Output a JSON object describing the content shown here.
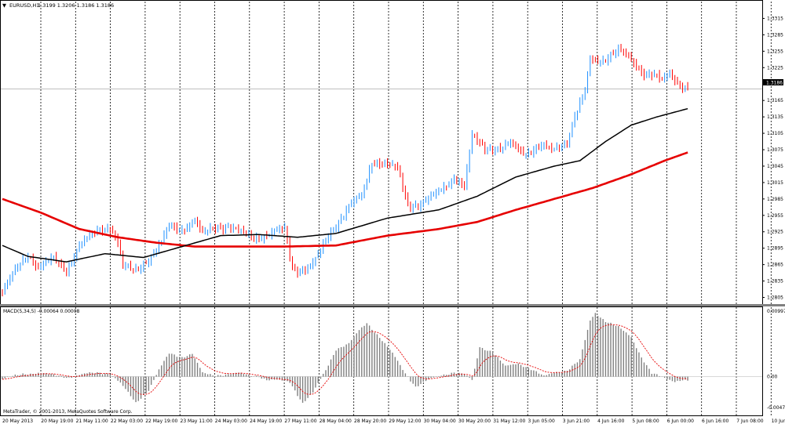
{
  "header": {
    "dropdown_glyph": "▼",
    "symbol": "EURUSD,H1",
    "ohlc": "1.3199 1.3206 1.3186 1.3186"
  },
  "price_scale": {
    "labels": [
      "1.3315",
      "1.3285",
      "1.3255",
      "1.3225",
      "1.3195",
      "1.3165",
      "1.3135",
      "1.3105",
      "1.3075",
      "1.3045",
      "1.3015",
      "1.2985",
      "1.2955",
      "1.2925",
      "1.2895",
      "1.2865",
      "1.2835",
      "1.2805"
    ],
    "current_price": "1.3186"
  },
  "macd": {
    "title": "MACD(5,34,5) -0.00064 0.00008",
    "scale_labels": [
      "0.00997",
      "0.00",
      "-0.00471"
    ]
  },
  "time_axis": {
    "labels": [
      "20 May 2013",
      "20 May 19:00",
      "21 May 11:00",
      "22 May 03:00",
      "22 May 19:00",
      "23 May 11:00",
      "24 May 03:00",
      "24 May 19:00",
      "27 May 11:00",
      "28 May 04:00",
      "28 May 20:00",
      "29 May 12:00",
      "30 May 04:00",
      "30 May 20:00",
      "31 May 12:00",
      "3 Jun 05:00",
      "3 Jun 21:00",
      "4 Jun 16:00",
      "5 Jun 08:00",
      "6 Jun 00:00",
      "6 Jun 16:00",
      "7 Jun 08:00",
      "10 Jun 01:00"
    ]
  },
  "copyright": "MetaTrader, © 2001-2013, MetaQuotes Software Corp.",
  "colors": {
    "background": "#ffffff",
    "bull_candle": "#1e90ff",
    "bear_candle": "#ff0000",
    "ma_fast": "#000000",
    "ma_slow": "#e60000",
    "macd_hist": "#808080",
    "macd_signal": "#e60000",
    "grid": "#000000"
  },
  "chart_data": {
    "type": "candlestick",
    "symbol": "EURUSD",
    "timeframe": "H1",
    "price_range": [
      1.28,
      1.333
    ],
    "close_keypoints": [
      [
        0,
        1.2815
      ],
      [
        6,
        1.286
      ],
      [
        10,
        1.2885
      ],
      [
        14,
        1.286
      ],
      [
        20,
        1.2875
      ],
      [
        25,
        1.2855
      ],
      [
        30,
        1.29
      ],
      [
        38,
        1.293
      ],
      [
        42,
        1.2935
      ],
      [
        45,
        1.2905
      ],
      [
        47,
        1.286
      ],
      [
        52,
        1.2855
      ],
      [
        58,
        1.288
      ],
      [
        62,
        1.2905
      ],
      [
        65,
        1.2935
      ],
      [
        70,
        1.293
      ],
      [
        75,
        1.2945
      ],
      [
        78,
        1.292
      ],
      [
        83,
        1.2935
      ],
      [
        88,
        1.2935
      ],
      [
        92,
        1.2925
      ],
      [
        98,
        1.2915
      ],
      [
        104,
        1.292
      ],
      [
        110,
        1.293
      ],
      [
        113,
        1.286
      ],
      [
        116,
        1.2855
      ],
      [
        120,
        1.286
      ],
      [
        123,
        1.288
      ],
      [
        127,
        1.292
      ],
      [
        131,
        1.2945
      ],
      [
        136,
        1.2975
      ],
      [
        140,
        1.299
      ],
      [
        144,
        1.3055
      ],
      [
        148,
        1.305
      ],
      [
        154,
        1.304
      ],
      [
        158,
        1.2975
      ],
      [
        163,
        1.2975
      ],
      [
        168,
        1.299
      ],
      [
        176,
        1.3025
      ],
      [
        180,
        1.3005
      ],
      [
        183,
        1.31
      ],
      [
        188,
        1.308
      ],
      [
        194,
        1.3075
      ],
      [
        198,
        1.3085
      ],
      [
        204,
        1.307
      ],
      [
        210,
        1.308
      ],
      [
        214,
        1.3075
      ],
      [
        220,
        1.309
      ],
      [
        223,
        1.3135
      ],
      [
        227,
        1.318
      ],
      [
        229,
        1.324
      ],
      [
        234,
        1.324
      ],
      [
        240,
        1.3255
      ],
      [
        244,
        1.3245
      ],
      [
        247,
        1.323
      ],
      [
        250,
        1.3215
      ],
      [
        254,
        1.321
      ],
      [
        257,
        1.32
      ],
      [
        260,
        1.3215
      ],
      [
        264,
        1.3195
      ],
      [
        267,
        1.3186
      ]
    ],
    "ma_fast_keypoints": [
      [
        0,
        1.29
      ],
      [
        10,
        1.288
      ],
      [
        25,
        1.287
      ],
      [
        40,
        1.2885
      ],
      [
        55,
        1.2878
      ],
      [
        70,
        1.2898
      ],
      [
        85,
        1.2918
      ],
      [
        100,
        1.292
      ],
      [
        115,
        1.2915
      ],
      [
        130,
        1.2922
      ],
      [
        150,
        1.295
      ],
      [
        170,
        1.2965
      ],
      [
        185,
        1.299
      ],
      [
        200,
        1.3025
      ],
      [
        215,
        1.3045
      ],
      [
        225,
        1.3055
      ],
      [
        235,
        1.309
      ],
      [
        245,
        1.312
      ],
      [
        255,
        1.3135
      ],
      [
        267,
        1.315
      ]
    ],
    "ma_slow_keypoints": [
      [
        0,
        1.2985
      ],
      [
        15,
        1.296
      ],
      [
        30,
        1.293
      ],
      [
        45,
        1.2915
      ],
      [
        60,
        1.2905
      ],
      [
        75,
        1.2898
      ],
      [
        90,
        1.2898
      ],
      [
        110,
        1.2898
      ],
      [
        130,
        1.29
      ],
      [
        150,
        1.2918
      ],
      [
        170,
        1.293
      ],
      [
        185,
        1.2943
      ],
      [
        200,
        1.2965
      ],
      [
        215,
        1.2985
      ],
      [
        230,
        1.3005
      ],
      [
        245,
        1.303
      ],
      [
        258,
        1.3055
      ],
      [
        267,
        1.307
      ]
    ],
    "macd_range": [
      -0.00471,
      0.00997
    ],
    "macd_keypoints": [
      [
        0,
        -0.0004
      ],
      [
        8,
        0.0004
      ],
      [
        14,
        0.0006
      ],
      [
        20,
        0.0002
      ],
      [
        26,
        -0.0001
      ],
      [
        32,
        0.0004
      ],
      [
        38,
        0.0006
      ],
      [
        42,
        0.0005
      ],
      [
        46,
        -0.001
      ],
      [
        52,
        -0.004
      ],
      [
        57,
        -0.002
      ],
      [
        61,
        0.001
      ],
      [
        65,
        0.0035
      ],
      [
        70,
        0.003
      ],
      [
        74,
        0.0035
      ],
      [
        78,
        0.0005
      ],
      [
        82,
        0.0002
      ],
      [
        88,
        0.0004
      ],
      [
        92,
        0.0005
      ],
      [
        96,
        0.0002
      ],
      [
        100,
        0.0001
      ],
      [
        103,
        -0.0005
      ],
      [
        108,
        -0.0006
      ],
      [
        112,
        -0.0008
      ],
      [
        117,
        -0.004
      ],
      [
        121,
        -0.0025
      ],
      [
        126,
        0.001
      ],
      [
        130,
        0.0042
      ],
      [
        135,
        0.005
      ],
      [
        139,
        0.007
      ],
      [
        142,
        0.0082
      ],
      [
        147,
        0.006
      ],
      [
        152,
        0.0035
      ],
      [
        157,
        0.0005
      ],
      [
        161,
        -0.0015
      ],
      [
        166,
        -0.0005
      ],
      [
        171,
        0.0002
      ],
      [
        176,
        0.0007
      ],
      [
        180,
        0.0003
      ],
      [
        183,
        -0.0006
      ],
      [
        186,
        0.0045
      ],
      [
        191,
        0.0038
      ],
      [
        196,
        0.0015
      ],
      [
        201,
        0.002
      ],
      [
        206,
        0.0012
      ],
      [
        211,
        0.0
      ],
      [
        215,
        0.0006
      ],
      [
        220,
        0.001
      ],
      [
        225,
        0.0025
      ],
      [
        229,
        0.0085
      ],
      [
        231,
        0.0097
      ],
      [
        235,
        0.0085
      ],
      [
        240,
        0.0075
      ],
      [
        245,
        0.006
      ],
      [
        249,
        0.003
      ],
      [
        253,
        0.0005
      ],
      [
        258,
        -0.0003
      ],
      [
        262,
        -0.0007
      ],
      [
        265,
        -0.0004
      ],
      [
        267,
        -0.0006
      ]
    ]
  }
}
